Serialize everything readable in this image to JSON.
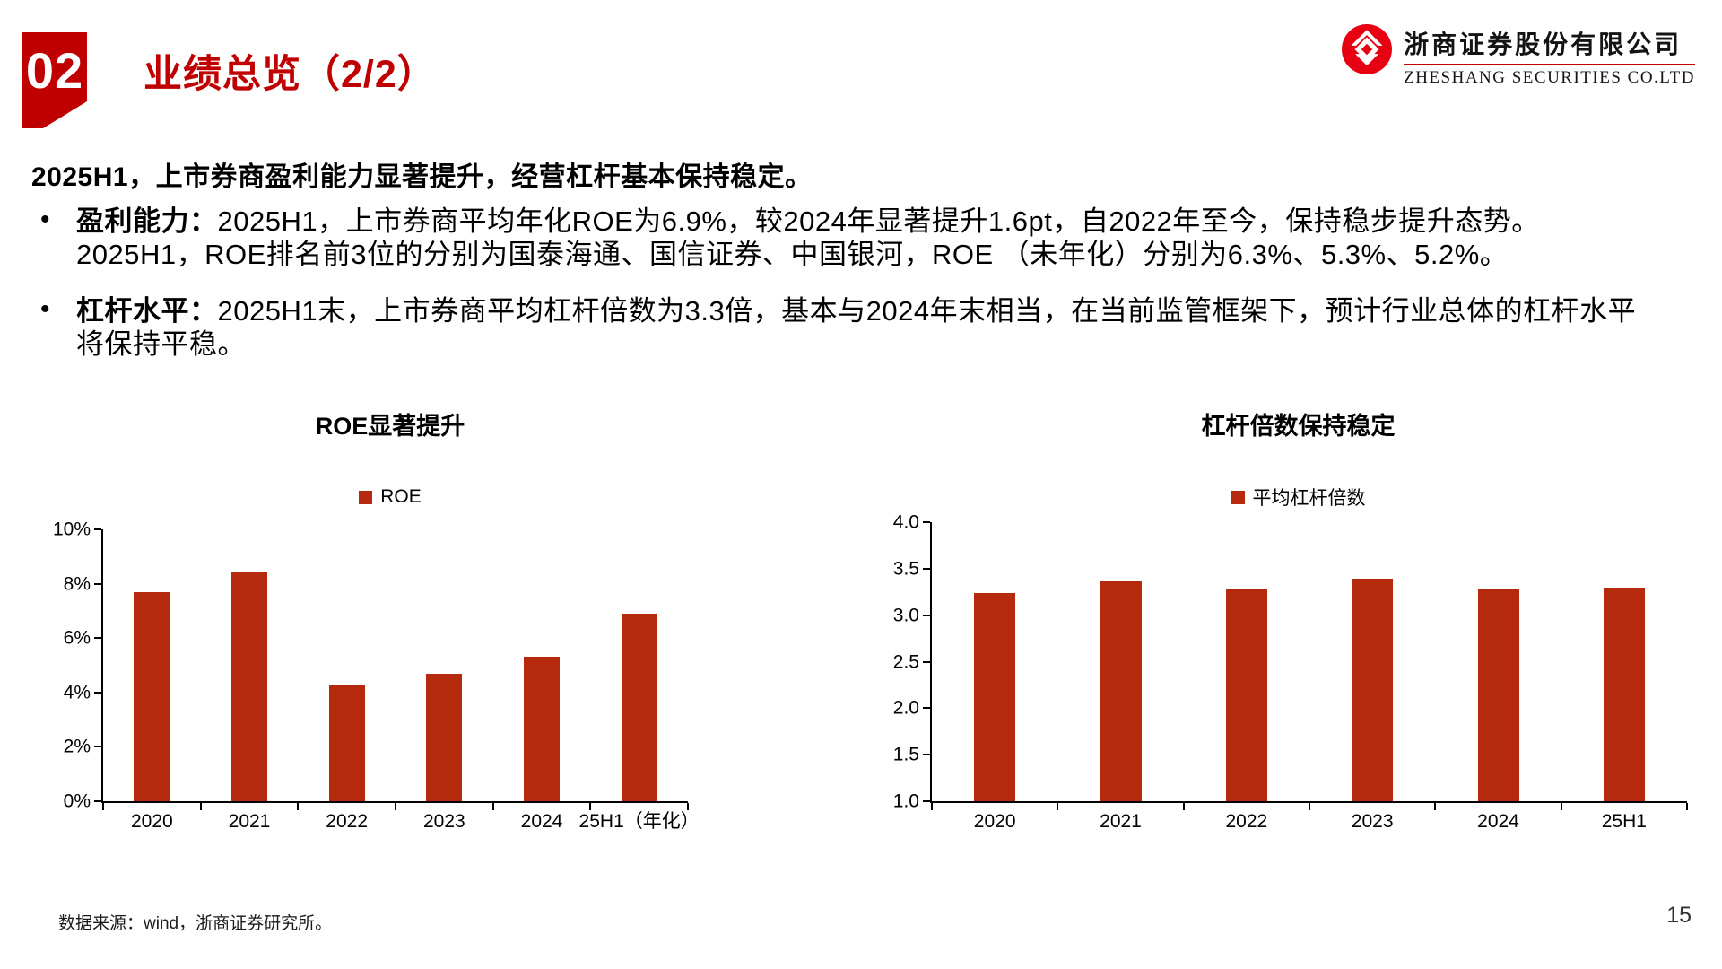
{
  "header": {
    "section_number": "02",
    "title": "业绩总览（2/2）",
    "logo": {
      "company_cn": "浙商证券股份有限公司",
      "company_en": "ZHESHANG SECURITIES CO.LTD"
    }
  },
  "summary": {
    "bullet_char": "•",
    "heading": "2025H1，上市券商盈利能力显著提升，经营杠杆基本保持稳定。",
    "bullets": [
      {
        "label": "盈利能力：",
        "lines": [
          "2025H1，上市券商平均年化ROE为6.9%，较2024年显著提升1.6pt，自2022年至今，保持稳步提升态势。",
          "2025H1，ROE排名前3位的分别为国泰海通、国信证券、中国银河，ROE （未年化）分别为6.3%、5.3%、5.2%。"
        ]
      },
      {
        "label": "杠杆水平：",
        "lines": [
          "2025H1末，上市券商平均杠杆倍数为3.3倍，基本与2024年末相当，在当前监管框架下，预计行业总体的杠杆水平",
          "将保持平稳。"
        ]
      }
    ]
  },
  "chart_data": [
    {
      "type": "bar",
      "title": "ROE显著提升",
      "legend": [
        "ROE"
      ],
      "legend_position": "top",
      "categories": [
        "2020",
        "2021",
        "2022",
        "2023",
        "2024",
        "25H1（年化）"
      ],
      "values": [
        7.7,
        8.4,
        4.3,
        4.7,
        5.3,
        6.9
      ],
      "unit": "%",
      "ylim": [
        0,
        10
      ],
      "ytick_step": 2,
      "ytick_labels": [
        "0%",
        "2%",
        "4%",
        "6%",
        "8%",
        "10%"
      ],
      "bar_color": "#B52A0C",
      "grid": false
    },
    {
      "type": "bar",
      "title": "杠杆倍数保持稳定",
      "legend": [
        "平均杠杆倍数"
      ],
      "legend_position": "top",
      "categories": [
        "2020",
        "2021",
        "2022",
        "2023",
        "2024",
        "25H1"
      ],
      "values": [
        3.24,
        3.36,
        3.29,
        3.39,
        3.29,
        3.3
      ],
      "unit": "倍",
      "ylim": [
        1.0,
        4.0
      ],
      "ytick_step": 0.5,
      "ytick_labels": [
        "1.0",
        "1.5",
        "2.0",
        "2.5",
        "3.0",
        "3.5",
        "4.0"
      ],
      "bar_color": "#B52A0C",
      "grid": false
    }
  ],
  "footer": {
    "source": "数据来源：wind，浙商证券研究所。",
    "page_number": "15"
  },
  "colors": {
    "brand_red": "#C00000",
    "bar_red": "#B52A0C",
    "logo_red": "#E60012"
  }
}
